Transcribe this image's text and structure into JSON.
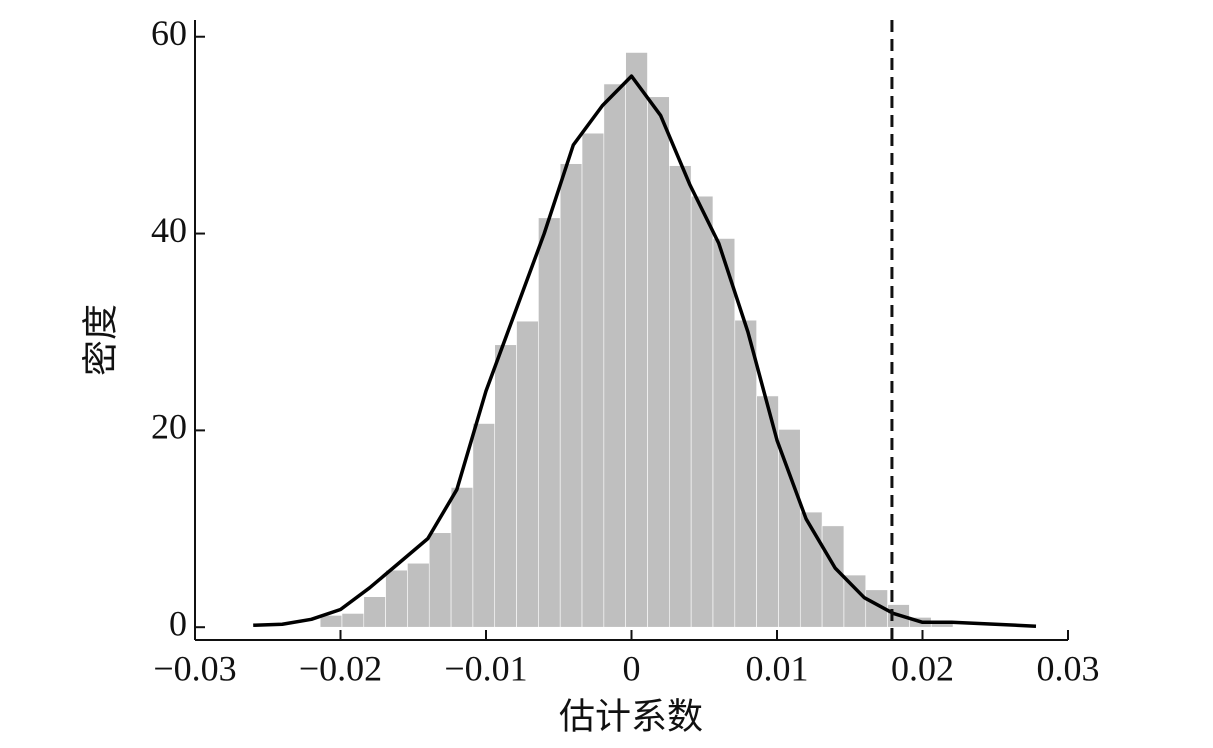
{
  "chart_data": {
    "type": "histogram",
    "x_label": "估计系数",
    "y_label": "密度",
    "bins": [
      -0.0214,
      -0.0199,
      -0.0184,
      -0.0169,
      -0.0154,
      -0.0139,
      -0.0124,
      -0.0109,
      -0.0094,
      -0.0079,
      -0.0064,
      -0.0049,
      -0.0034,
      -0.0019,
      -0.0004,
      0.0011,
      0.0026,
      0.0041,
      0.0056,
      0.0071,
      0.0086,
      0.0101,
      0.0116,
      0.0131,
      0.0146,
      0.0161,
      0.0176,
      0.0191,
      0.0206,
      0.0221
    ],
    "counts": [
      1.2,
      1.4,
      3.1,
      5.8,
      6.5,
      9.6,
      14.2,
      20.7,
      28.7,
      31.1,
      41.6,
      47.1,
      50.2,
      55.2,
      58.4,
      53.9,
      46.9,
      43.8,
      39.5,
      31.2,
      23.5,
      20.1,
      11.7,
      10.3,
      5.3,
      3.8,
      2.3,
      1.0,
      0.5
    ],
    "color": "#bfbfbf",
    "kde": {
      "color": "#000000",
      "x": [
        -0.026,
        -0.024,
        -0.022,
        -0.02,
        -0.018,
        -0.016,
        -0.014,
        -0.012,
        -0.01,
        -0.008,
        -0.006,
        -0.004,
        -0.002,
        0,
        0.002,
        0.004,
        0.006,
        0.008,
        0.01,
        0.012,
        0.014,
        0.016,
        0.018,
        0.02,
        0.022,
        0.025,
        0.0278
      ],
      "values": [
        0.2,
        0.3,
        0.8,
        1.8,
        4,
        6.5,
        9,
        14,
        24,
        32,
        40,
        49,
        53,
        56,
        52,
        45,
        39,
        30,
        19,
        11,
        6,
        3,
        1.4,
        0.5,
        0.5,
        0.3,
        0.1
      ]
    },
    "vline": 0.0179,
    "xlim": [
      -0.03,
      0.03
    ],
    "xticks": [
      {
        "value": -0.03,
        "label": "−0.03"
      },
      {
        "value": -0.02,
        "label": "−0.02"
      },
      {
        "value": -0.01,
        "label": "−0.01"
      },
      0,
      0.01,
      0.02,
      0.03
    ],
    "ylim": [
      -1.3,
      61.7
    ],
    "yticks": [
      0,
      20,
      40,
      60
    ]
  }
}
